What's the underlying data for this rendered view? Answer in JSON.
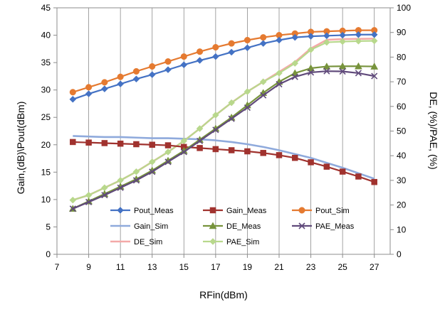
{
  "chart_data": {
    "type": "line",
    "title": "",
    "xlabel": "RFin(dBm)",
    "ylabel": "Gain,(dB)\\Pout(dBm)",
    "y2label": "DE, (%)/PAE, (%)",
    "xlim": [
      7,
      28
    ],
    "ylim": [
      0,
      45
    ],
    "y2lim": [
      0,
      100
    ],
    "xticks": [
      7,
      9,
      11,
      13,
      15,
      17,
      19,
      21,
      23,
      25,
      27
    ],
    "yticks": [
      0,
      5,
      10,
      15,
      20,
      25,
      30,
      35,
      40,
      45
    ],
    "y2ticks": [
      0,
      10,
      20,
      30,
      40,
      50,
      60,
      70,
      80,
      90,
      100
    ],
    "grid": "x-major",
    "legend_position": "lower-left inside plot",
    "x": [
      8,
      9,
      10,
      11,
      12,
      13,
      14,
      15,
      16,
      17,
      18,
      19,
      20,
      21,
      22,
      23,
      24,
      25,
      26,
      27
    ],
    "series": [
      {
        "name": "Pout_Meas",
        "axis": "left",
        "color": "#4472C4",
        "marker": "diamond",
        "values": [
          28.3,
          29.3,
          30.2,
          31.1,
          32.0,
          32.8,
          33.7,
          34.6,
          35.4,
          36.1,
          36.9,
          37.7,
          38.5,
          39.1,
          39.6,
          39.8,
          39.9,
          40.0,
          40.1,
          40.1
        ]
      },
      {
        "name": "Gain_Meas",
        "axis": "left",
        "color": "#A0322E",
        "marker": "square",
        "values": [
          20.5,
          20.4,
          20.3,
          20.2,
          20.1,
          20.0,
          19.9,
          19.6,
          19.4,
          19.2,
          19.0,
          18.8,
          18.5,
          18.1,
          17.6,
          16.8,
          16.0,
          15.1,
          14.2,
          13.2
        ]
      },
      {
        "name": "Pout_Sim",
        "axis": "left",
        "color": "#E57A30",
        "marker": "circle",
        "values": [
          29.6,
          30.5,
          31.4,
          32.4,
          33.4,
          34.3,
          35.2,
          36.1,
          37.0,
          37.8,
          38.5,
          39.1,
          39.6,
          40.0,
          40.3,
          40.6,
          40.7,
          40.8,
          40.9,
          40.9
        ]
      },
      {
        "name": "Gain_Sim",
        "axis": "left",
        "color": "#8FAADC",
        "marker": "none",
        "values": [
          21.6,
          21.5,
          21.4,
          21.4,
          21.3,
          21.2,
          21.2,
          21.1,
          21.0,
          20.8,
          20.5,
          20.1,
          19.6,
          19.0,
          18.3,
          17.6,
          16.7,
          15.8,
          14.8,
          13.8
        ]
      },
      {
        "name": "DE_Meas",
        "axis": "right",
        "color": "#77933C",
        "marker": "triangle",
        "values": [
          18.5,
          21.5,
          24.5,
          27.5,
          30.5,
          34.0,
          38.0,
          42.0,
          46.5,
          51.0,
          55.5,
          60.5,
          65.5,
          70.0,
          73.5,
          75.5,
          76.2,
          76.3,
          76.3,
          76.2
        ]
      },
      {
        "name": "PAE_Meas",
        "axis": "right",
        "color": "#604A7B",
        "marker": "x",
        "values": [
          18.5,
          21.2,
          24.0,
          27.0,
          30.0,
          33.5,
          37.5,
          41.5,
          46.0,
          50.5,
          55.0,
          59.5,
          64.5,
          69.0,
          72.0,
          73.8,
          74.3,
          74.2,
          73.5,
          72.3
        ]
      },
      {
        "name": "DE_Sim",
        "axis": "right",
        "color": "#F4A9A8",
        "marker": "none",
        "values": [
          22.0,
          24.0,
          27.0,
          30.0,
          33.5,
          37.5,
          41.5,
          46.0,
          51.0,
          56.5,
          61.5,
          66.0,
          70.0,
          74.0,
          78.0,
          83.5,
          87.0,
          87.3,
          87.4,
          87.5
        ]
      },
      {
        "name": "PAE_Sim",
        "axis": "right",
        "color": "#B8D88C",
        "marker": "diamond",
        "values": [
          22.0,
          24.0,
          27.0,
          30.0,
          33.5,
          37.5,
          41.5,
          46.0,
          51.0,
          56.5,
          61.5,
          66.0,
          70.0,
          73.5,
          77.5,
          83.0,
          86.0,
          86.3,
          86.5,
          86.6
        ]
      }
    ],
    "legend_order": [
      "Pout_Meas",
      "Gain_Meas",
      "Pout_Sim",
      "Gain_Sim",
      "DE_Meas",
      "PAE_Meas",
      "DE_Sim",
      "PAE_Sim"
    ]
  }
}
